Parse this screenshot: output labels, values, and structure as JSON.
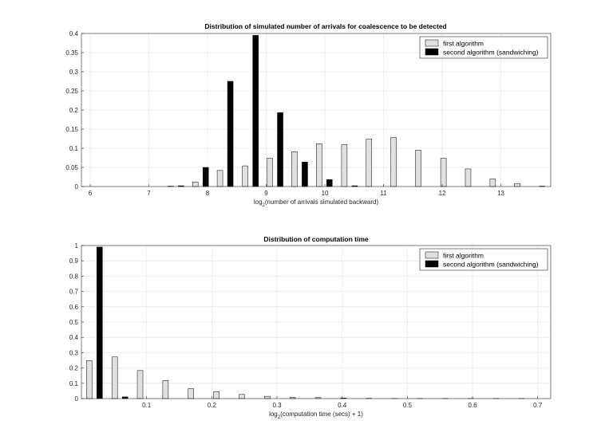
{
  "colors": {
    "series1": "#e0e0e0",
    "series2": "#000000",
    "edge": "#000000"
  },
  "chart_data": [
    {
      "type": "bar",
      "title": "Distribution of simulated number of arrivals for coalescence to be detected",
      "xlabel_main": "log",
      "xlabel_sub": "2",
      "xlabel_rest": "(number of arrivals simulated backward)",
      "xlim": [
        5.85,
        13.85
      ],
      "ylim": [
        0,
        0.4
      ],
      "xticks": [
        6,
        7,
        8,
        9,
        10,
        11,
        12,
        13
      ],
      "xtick_labels": [
        "6",
        "7",
        "8",
        "9",
        "10",
        "11",
        "12",
        "13"
      ],
      "yticks": [
        0,
        0.05,
        0.1,
        0.15,
        0.2,
        0.25,
        0.3,
        0.35,
        0.4
      ],
      "ytick_labels": [
        "0",
        "0.05",
        "0.1",
        "0.15",
        "0.2",
        "0.25",
        "0.3",
        "0.35",
        "0.4"
      ],
      "grid": true,
      "legend_position": "top-right",
      "categories": [
        6.19,
        6.62,
        7.04,
        7.46,
        7.88,
        8.3,
        8.73,
        9.15,
        9.57,
        9.99,
        10.42,
        10.84,
        11.26,
        11.68,
        12.11,
        12.53,
        12.95,
        13.37,
        13.79
      ],
      "series": [
        {
          "name": "first algorithm",
          "values": [
            0,
            0,
            0,
            0.001,
            0.012,
            0.042,
            0.054,
            0.074,
            0.091,
            0.112,
            0.11,
            0.124,
            0.128,
            0.095,
            0.074,
            0.046,
            0.02,
            0.008,
            0.001
          ]
        },
        {
          "name": "second algorithm (sandwiching)",
          "values": [
            0,
            0,
            0,
            0.002,
            0.05,
            0.275,
            0.395,
            0.193,
            0.064,
            0.018,
            0.002,
            0,
            0,
            0,
            0,
            0,
            0,
            0,
            0
          ]
        }
      ]
    },
    {
      "type": "bar",
      "title": "Distribution of computation time",
      "xlabel_main": "log",
      "xlabel_sub": "2",
      "xlabel_rest": "(computation time (secs) + 1)",
      "xlim": [
        0.0,
        0.72
      ],
      "ylim": [
        0,
        1
      ],
      "xticks": [
        0.1,
        0.2,
        0.3,
        0.4,
        0.5,
        0.6,
        0.7
      ],
      "xtick_labels": [
        "0.1",
        "0.2",
        "0.3",
        "0.4",
        "0.5",
        "0.6",
        "0.7"
      ],
      "yticks": [
        0,
        0.1,
        0.2,
        0.3,
        0.4,
        0.5,
        0.6,
        0.7,
        0.8,
        0.9,
        1
      ],
      "ytick_labels": [
        "0",
        "0.1",
        "0.2",
        "0.3",
        "0.4",
        "0.5",
        "0.6",
        "0.7",
        "0.8",
        "0.9",
        "1"
      ],
      "grid": true,
      "legend_position": "top-right",
      "categories": [
        0.02,
        0.059,
        0.098,
        0.137,
        0.176,
        0.215,
        0.254,
        0.293,
        0.332,
        0.371,
        0.41,
        0.449,
        0.488,
        0.527,
        0.566,
        0.605,
        0.644,
        0.683
      ],
      "series": [
        {
          "name": "first algorithm",
          "values": [
            0.248,
            0.272,
            0.183,
            0.118,
            0.065,
            0.045,
            0.027,
            0.015,
            0.008,
            0.007,
            0.004,
            0.002,
            0.001,
            0.001,
            0.001,
            0.001,
            0.001,
            0.001
          ]
        },
        {
          "name": "second algorithm (sandwiching)",
          "values": [
            0.99,
            0.011,
            0,
            0,
            0,
            0,
            0,
            0,
            0,
            0,
            0,
            0,
            0,
            0,
            0,
            0,
            0,
            0
          ]
        }
      ]
    }
  ]
}
